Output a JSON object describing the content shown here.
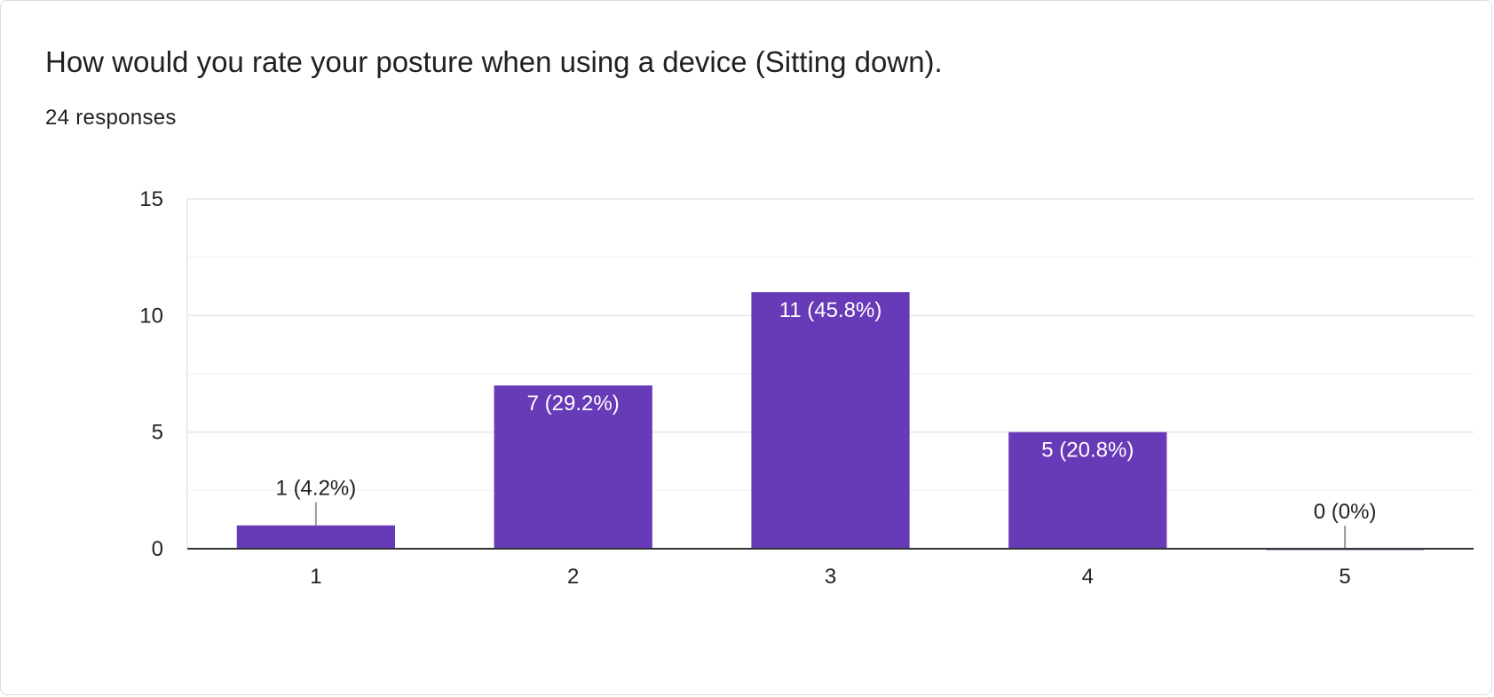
{
  "card": {
    "title": "How would you rate your posture when using a device (Sitting down).",
    "response_count": "24 responses"
  },
  "colors": {
    "bar": "#673ab7",
    "grid": "#ebebeb",
    "minor_grid": "#f4f4f4",
    "axis": "#333333",
    "leader": "#999999"
  },
  "chart_data": {
    "type": "bar",
    "categories": [
      "1",
      "2",
      "3",
      "4",
      "5"
    ],
    "values": [
      1,
      7,
      11,
      5,
      0
    ],
    "data_labels": [
      "1 (4.2%)",
      "7 (29.2%)",
      "11 (45.8%)",
      "5 (20.8%)",
      "0 (0%)"
    ],
    "yticks": [
      0,
      5,
      10,
      15
    ],
    "ylim": [
      0,
      15
    ],
    "minor_grid_step": 2.5,
    "grid": true,
    "xlabel": "",
    "ylabel": ""
  }
}
